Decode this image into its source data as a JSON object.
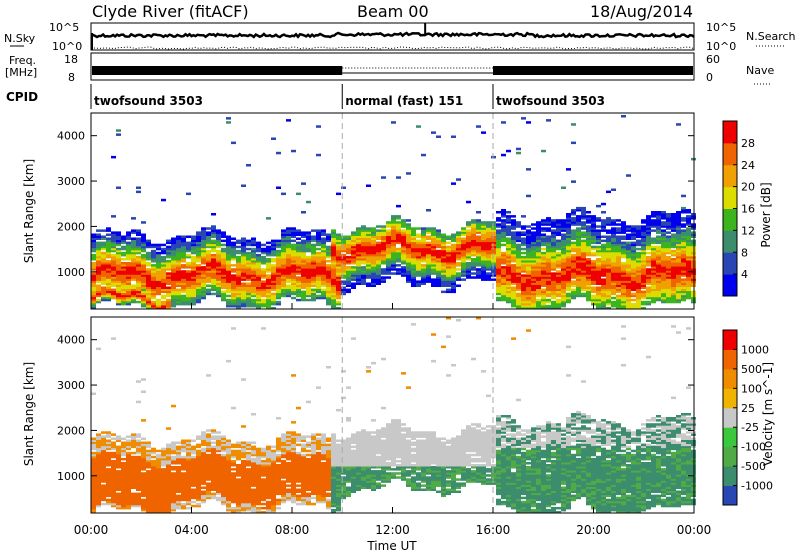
{
  "header": {
    "station": "Clyde River (fitACF)",
    "beam": "Beam 00",
    "date": "18/Aug/2014"
  },
  "nsky_panel": {
    "left_label": "N.Sky",
    "left_ticks": [
      "10^5",
      "10^0"
    ],
    "right_ticks": [
      "10^5",
      "10^0"
    ],
    "right_label": "N.Search"
  },
  "freq_panel": {
    "left_label_line1": "Freq.",
    "left_label_line2": "[MHz]",
    "left_ticks": [
      "18",
      "8"
    ],
    "right_ticks": [
      "60",
      "0"
    ],
    "right_label": "Nave"
  },
  "cpid_panel": {
    "label": "CPID",
    "segments": [
      {
        "name": "twofsound 3503",
        "start_hour": 0,
        "end_hour": 10
      },
      {
        "name": "normal (fast) 151",
        "start_hour": 10,
        "end_hour": 16
      },
      {
        "name": "twofsound 3503",
        "start_hour": 16,
        "end_hour": 24
      }
    ]
  },
  "chart_data": [
    {
      "type": "heatmap",
      "quantity": "Power",
      "ylabel": "Slant Range [km]",
      "ylim": [
        180,
        4500
      ],
      "yticks": [
        "1000",
        "2000",
        "3000",
        "4000"
      ],
      "colorbar_label": "Power [dB]",
      "colorbar_ticks": [
        "4",
        "8",
        "12",
        "16",
        "20",
        "24",
        "28"
      ],
      "colorbar_range": [
        0,
        32
      ],
      "colors": [
        "#0000ee",
        "#2846b4",
        "#3c8c6e",
        "#3cb41e",
        "#dcdc00",
        "#f0a000",
        "#f06400",
        "#ee0000"
      ]
    },
    {
      "type": "heatmap",
      "quantity": "Velocity",
      "ylabel": "Slant Range [km]",
      "ylim": [
        180,
        4500
      ],
      "yticks": [
        "1000",
        "2000",
        "3000",
        "4000"
      ],
      "colorbar_label": "Velocity [m s^-1]",
      "colorbar_ticks": [
        "1000",
        "500",
        "100",
        "25",
        "-25",
        "-100",
        "-500",
        "-1000"
      ],
      "colors": [
        "#2846b4",
        "#3c8c6e",
        "#50aa46",
        "#3cc83c",
        "#c8c8c8",
        "#f0b400",
        "#f08c00",
        "#f06400",
        "#ee0000"
      ]
    }
  ],
  "xaxis": {
    "label": "Time UT",
    "range_hours": [
      0,
      24
    ],
    "tick_labels": [
      "00:00",
      "04:00",
      "08:00",
      "12:00",
      "16:00",
      "20:00",
      "00:00"
    ]
  }
}
